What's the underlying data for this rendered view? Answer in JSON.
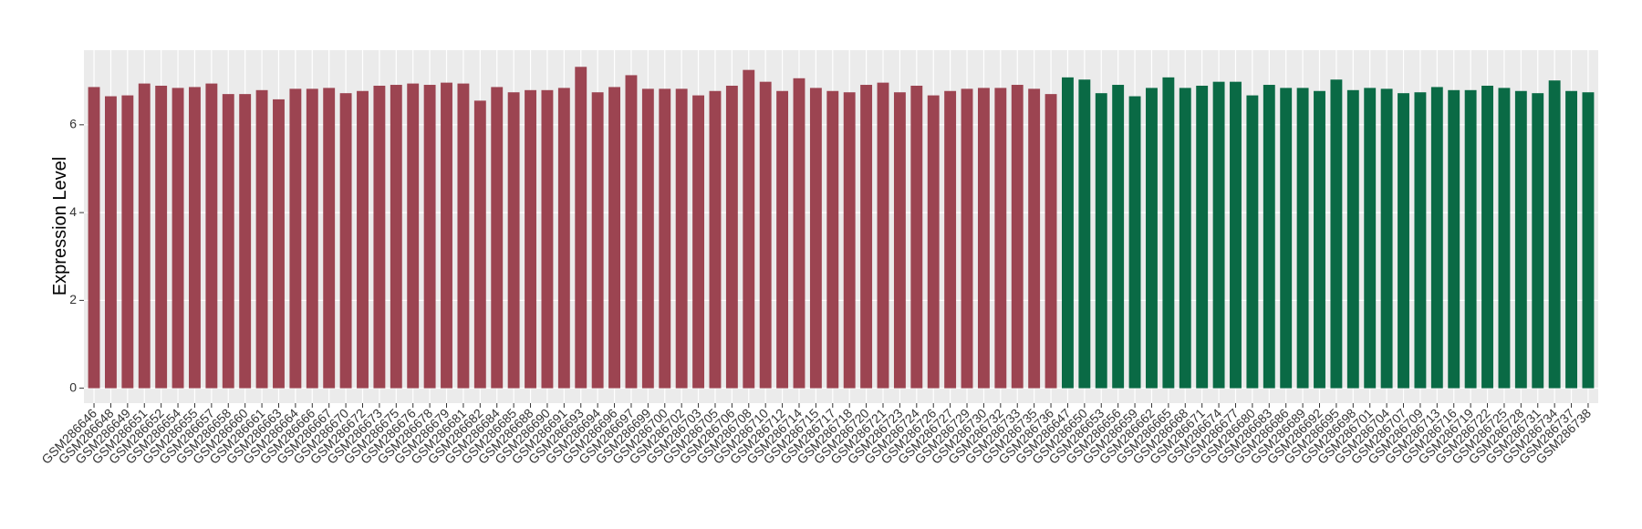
{
  "chart_data": {
    "type": "bar",
    "y_label": "Expression Level",
    "series": [
      {
        "color": "#9c4451",
        "categories": [
          "GSM286646",
          "GSM286648",
          "GSM286649",
          "GSM286651",
          "GSM286652",
          "GSM286654",
          "GSM286655",
          "GSM286657",
          "GSM286658",
          "GSM286660",
          "GSM286661",
          "GSM286663",
          "GSM286664",
          "GSM286666",
          "GSM286667",
          "GSM286670",
          "GSM286672",
          "GSM286673",
          "GSM286675",
          "GSM286676",
          "GSM286678",
          "GSM286679",
          "GSM286681",
          "GSM286682",
          "GSM286684",
          "GSM286685",
          "GSM286688",
          "GSM286690",
          "GSM286691",
          "GSM286693",
          "GSM286694",
          "GSM286696",
          "GSM286697",
          "GSM286699",
          "GSM286700",
          "GSM286702",
          "GSM286703",
          "GSM286705",
          "GSM286706",
          "GSM286708",
          "GSM286710",
          "GSM286712",
          "GSM286714",
          "GSM286715",
          "GSM286717",
          "GSM286718",
          "GSM286720",
          "GSM286721",
          "GSM286723",
          "GSM286724",
          "GSM286726",
          "GSM286727",
          "GSM286729",
          "GSM286730",
          "GSM286732",
          "GSM286733",
          "GSM286735",
          "GSM286736"
        ],
        "values": [
          6.86,
          6.65,
          6.67,
          6.94,
          6.89,
          6.84,
          6.86,
          6.94,
          6.7,
          6.7,
          6.79,
          6.58,
          6.82,
          6.82,
          6.84,
          6.72,
          6.77,
          6.89,
          6.91,
          6.94,
          6.91,
          6.96,
          6.94,
          6.55,
          6.86,
          6.74,
          6.79,
          6.79,
          6.84,
          7.32,
          6.74,
          6.86,
          7.13,
          6.82,
          6.82,
          6.82,
          6.67,
          6.77,
          6.89,
          7.25,
          6.98,
          6.77,
          7.06,
          6.84,
          6.77,
          6.74,
          6.91,
          6.96,
          6.74,
          6.89,
          6.67,
          6.77,
          6.82,
          6.84,
          6.84,
          6.91,
          6.82,
          6.7
        ]
      },
      {
        "color": "#0a6a45",
        "categories": [
          "GSM286647",
          "GSM286650",
          "GSM286653",
          "GSM286656",
          "GSM286659",
          "GSM286662",
          "GSM286665",
          "GSM286668",
          "GSM286671",
          "GSM286674",
          "GSM286677",
          "GSM286680",
          "GSM286683",
          "GSM286686",
          "GSM286689",
          "GSM286692",
          "GSM286695",
          "GSM286698",
          "GSM286701",
          "GSM286704",
          "GSM286707",
          "GSM286709",
          "GSM286713",
          "GSM286716",
          "GSM286719",
          "GSM286722",
          "GSM286725",
          "GSM286728",
          "GSM286731",
          "GSM286734",
          "GSM286737",
          "GSM286738"
        ],
        "values": [
          7.08,
          7.03,
          6.72,
          6.91,
          6.65,
          6.84,
          7.08,
          6.84,
          6.89,
          6.98,
          6.98,
          6.67,
          6.91,
          6.84,
          6.84,
          6.77,
          7.03,
          6.79,
          6.84,
          6.82,
          6.72,
          6.74,
          6.86,
          6.79,
          6.79,
          6.89,
          6.84,
          6.77,
          6.72,
          7.01,
          6.77,
          6.74
        ]
      }
    ],
    "ylim": [
      -0.34,
      7.7
    ],
    "yticks": [
      0,
      2,
      4,
      6
    ],
    "grid": true
  }
}
